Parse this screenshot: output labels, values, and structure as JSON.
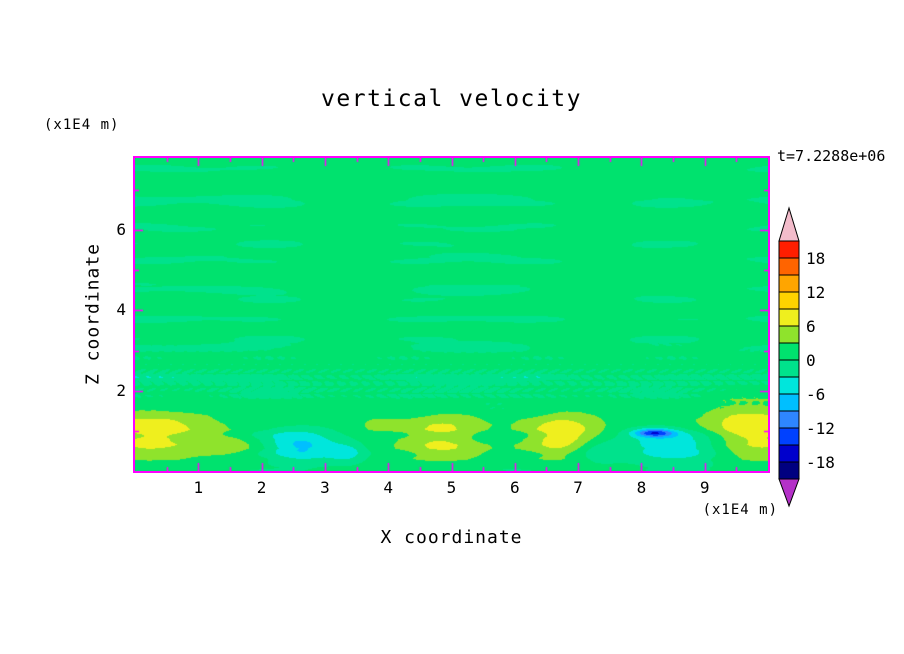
{
  "page": {
    "background": "#FFFFFF"
  },
  "chart_data": {
    "type": "heatmap",
    "style": "filled-contour",
    "title": "vertical velocity",
    "time_annotation": "t=7.2288e+06",
    "x_axis": {
      "label": "X coordinate",
      "unit": "(x1E4 m)",
      "min": 0,
      "max": 10,
      "major_ticks": [
        1,
        2,
        3,
        4,
        5,
        6,
        7,
        8,
        9
      ],
      "minor_ticks": [
        0.5,
        1.5,
        2.5,
        3.5,
        4.5,
        5.5,
        6.5,
        7.5,
        8.5,
        9.5
      ]
    },
    "z_axis": {
      "label": "Z coordinate",
      "unit": "(x1E4 m)",
      "min": 0,
      "max": 7.8,
      "major_ticks": [
        2,
        4,
        6
      ],
      "minor_ticks": [
        1,
        3,
        5,
        7
      ]
    },
    "frame_color": "#FF00FF",
    "levels": [
      -21,
      -18,
      -15,
      -12,
      -9,
      -6,
      -3,
      0,
      3,
      6,
      9,
      12,
      15,
      18,
      21
    ],
    "step": 3,
    "colors": [
      "#000080",
      "#0000CC",
      "#0041FF",
      "#2E86FF",
      "#00BFFF",
      "#00E6DC",
      "#00E28C",
      "#00E26E",
      "#8FE32C",
      "#EFEF1E",
      "#FFD300",
      "#FFA500",
      "#FF6400",
      "#FF1E00"
    ],
    "under_color": "#B431C8",
    "over_color": "#F3BCCB",
    "colorbar": {
      "labels": [
        "18",
        "12",
        "6",
        "0",
        "-6",
        "-12",
        "-18"
      ],
      "level_min": -21,
      "level_max": 21,
      "step": 3
    },
    "field_model": {
      "base": 1.3,
      "streaks": [
        {
          "amp": 1.5,
          "fz": 1.35,
          "pz": 0.12,
          "fx": 0.21,
          "px": 0.1
        },
        {
          "amp": 1.25,
          "fz": 0.85,
          "pz": 0.52,
          "fx": 0.33,
          "px": 0.55
        },
        {
          "amp": 1.0,
          "fz": 2.1,
          "pz": 0.33,
          "fx": 0.47,
          "px": 0.25
        }
      ],
      "noise_band": {
        "amp": 2.6,
        "fx": 2.6,
        "fz": 3.1,
        "zc": 2.25,
        "zw": 0.5,
        "wob": 1.6,
        "wfz": 2.2
      },
      "blobs": [
        {
          "x": 0.25,
          "z": 0.95,
          "sx": 0.95,
          "sz": 0.6,
          "amp": 7.2
        },
        {
          "x": 1.55,
          "z": 0.7,
          "sx": 0.45,
          "sz": 0.3,
          "amp": 3.5
        },
        {
          "x": 3.85,
          "z": 1.15,
          "sx": 0.3,
          "sz": 0.2,
          "amp": 2.6
        },
        {
          "x": 4.85,
          "z": 0.85,
          "sx": 0.7,
          "sz": 0.55,
          "amp": 6.8
        },
        {
          "x": 6.75,
          "z": 0.9,
          "sx": 0.65,
          "sz": 0.55,
          "amp": 7.4
        },
        {
          "x": 9.75,
          "z": 1.0,
          "sx": 0.9,
          "sz": 0.7,
          "amp": 7.6
        },
        {
          "x": 2.65,
          "z": 0.6,
          "sx": 0.55,
          "sz": 0.4,
          "amp": -7.5
        },
        {
          "x": 3.35,
          "z": 0.45,
          "sx": 0.3,
          "sz": 0.25,
          "amp": -5.0
        },
        {
          "x": 7.3,
          "z": 0.5,
          "sx": 0.4,
          "sz": 0.3,
          "amp": -4.5
        },
        {
          "x": 8.6,
          "z": 0.6,
          "sx": 0.8,
          "sz": 0.45,
          "amp": -7.0
        },
        {
          "x": 8.2,
          "z": 0.95,
          "sx": 0.3,
          "sz": 0.1,
          "amp": -12.5
        }
      ]
    }
  }
}
